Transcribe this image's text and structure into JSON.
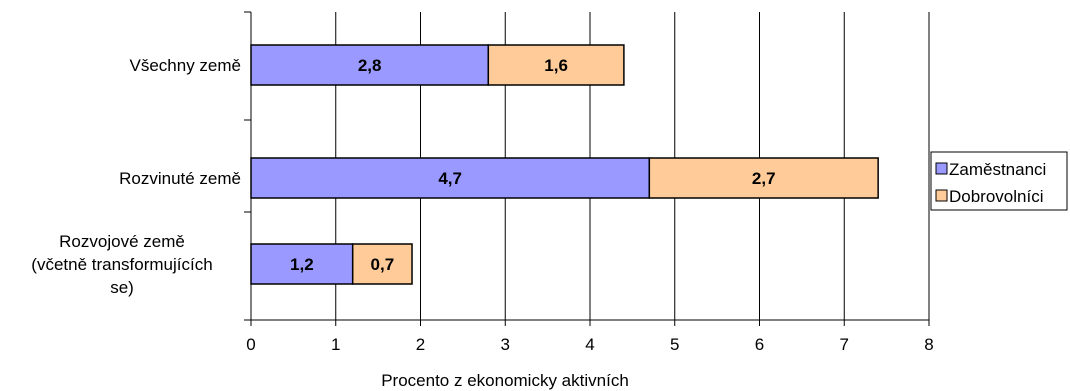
{
  "chart_data": {
    "type": "bar",
    "orientation": "horizontal",
    "stacked": true,
    "categories": [
      [
        "Všechny země"
      ],
      [
        "Rozvinuté země"
      ],
      [
        "Rozvojové země",
        "(včetně transformujících",
        "se)"
      ]
    ],
    "series": [
      {
        "name": "Zaměstnanci",
        "values": [
          2.8,
          4.7,
          1.2
        ],
        "labels": [
          "2,8",
          "4,7",
          "1,2"
        ],
        "color": "#9999ff"
      },
      {
        "name": "Dobrovolníci",
        "values": [
          1.6,
          2.7,
          0.7
        ],
        "labels": [
          "1,6",
          "2,7",
          "0,7"
        ],
        "color": "#ffcc99"
      }
    ],
    "xlabel": "Procento z ekonomicky aktivních",
    "ylabel": "",
    "title": "",
    "xlim": [
      0,
      8
    ],
    "xticks": [
      0,
      1,
      2,
      3,
      4,
      5,
      6,
      7,
      8
    ],
    "grid": "vertical",
    "legend_position": "right"
  }
}
